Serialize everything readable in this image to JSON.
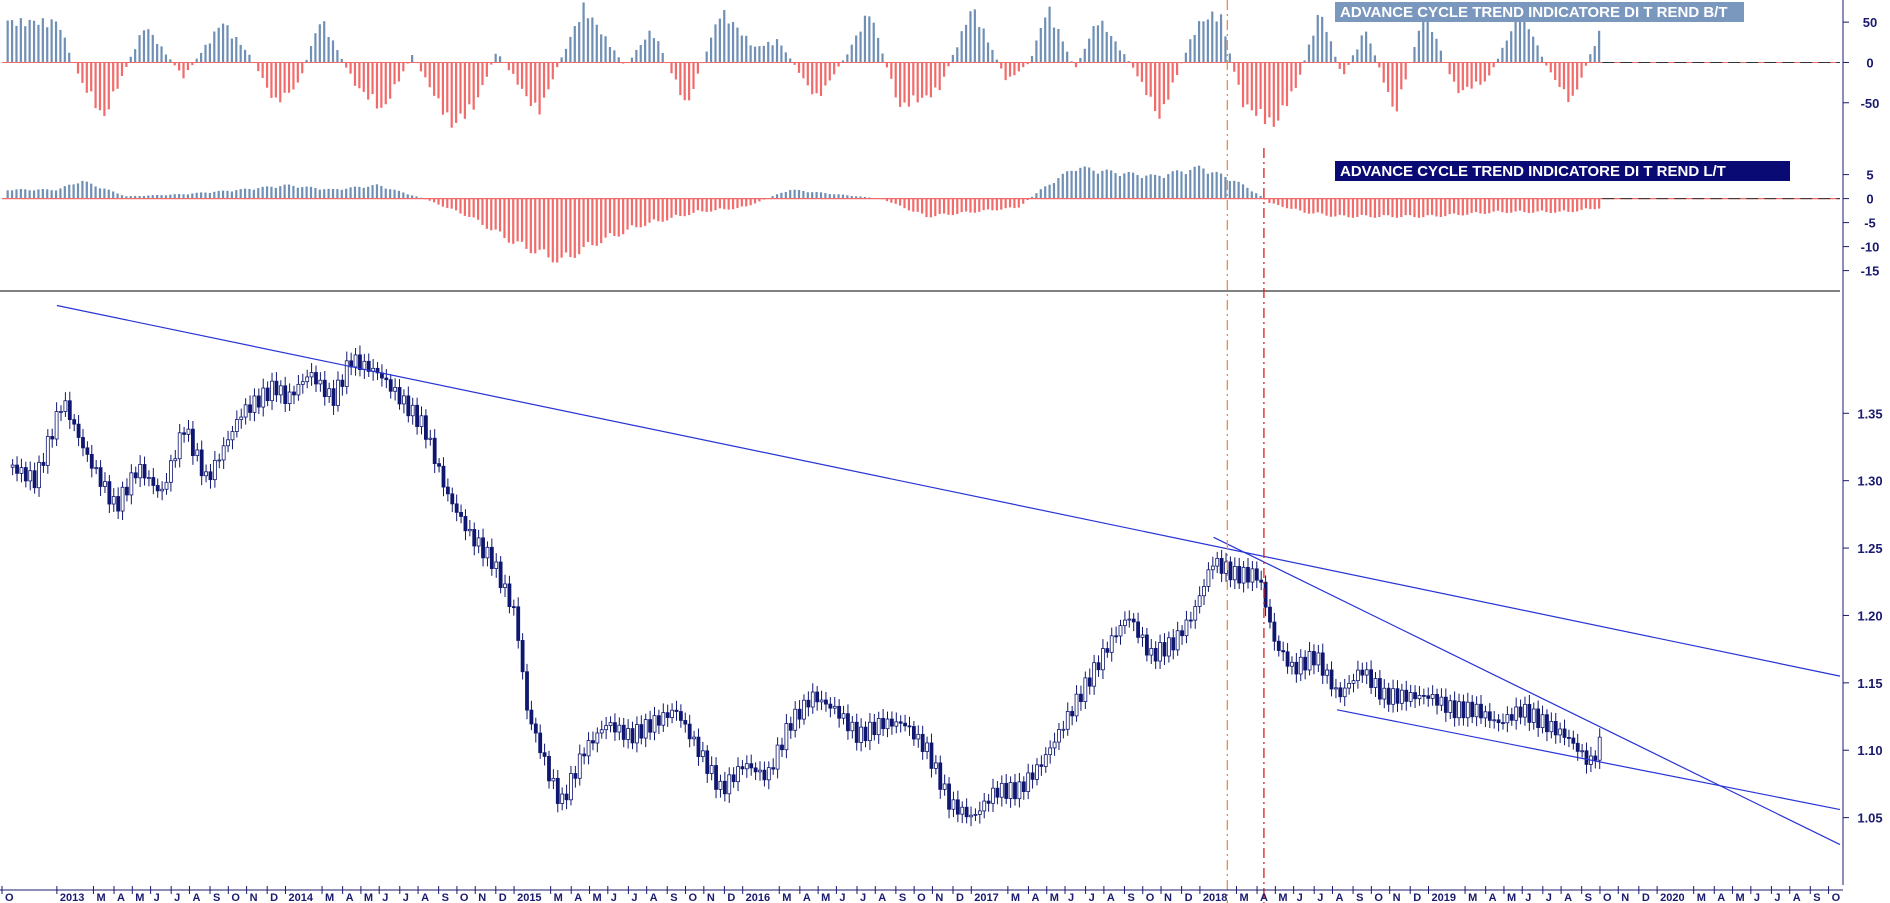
{
  "colors": {
    "positive_bar": "#6f8fb5",
    "negative_bar": "#f26b6b",
    "candle": "#0f1770",
    "trendline": "#2733d6",
    "axis_text": "#1a1a6e",
    "bt_title_bg": "#7a98bd",
    "lt_title_bg": "#0a0a74",
    "cycle_line_1": "#f08a48",
    "cycle_line_2": "#d62020"
  },
  "chart_data": [
    {
      "panel": "oscillator-bt",
      "type": "bar",
      "title": "ADVANCE CYCLE TREND INDICATORE DI T REND B/T",
      "y_ticks": [
        "50",
        "0",
        "-50"
      ],
      "ylim": [
        -90,
        75
      ],
      "grid": false,
      "series_envelope": [
        {
          "t": 2013.0,
          "v": 55
        },
        {
          "t": 2013.1,
          "v": -25
        },
        {
          "t": 2013.2,
          "v": -75
        },
        {
          "t": 2013.38,
          "v": 50
        },
        {
          "t": 2013.55,
          "v": -20
        },
        {
          "t": 2013.72,
          "v": 55
        },
        {
          "t": 2013.85,
          "v": 5
        },
        {
          "t": 2013.95,
          "v": -55
        },
        {
          "t": 2014.05,
          "v": -30
        },
        {
          "t": 2014.15,
          "v": 60
        },
        {
          "t": 2014.3,
          "v": -30
        },
        {
          "t": 2014.42,
          "v": -65
        },
        {
          "t": 2014.55,
          "v": 10
        },
        {
          "t": 2014.72,
          "v": -85
        },
        {
          "t": 2014.82,
          "v": -60
        },
        {
          "t": 2014.92,
          "v": 15
        },
        {
          "t": 2015.1,
          "v": -70
        },
        {
          "t": 2015.18,
          "v": -10
        },
        {
          "t": 2015.3,
          "v": 75
        },
        {
          "t": 2015.48,
          "v": -5
        },
        {
          "t": 2015.6,
          "v": 45
        },
        {
          "t": 2015.75,
          "v": -60
        },
        {
          "t": 2015.9,
          "v": 70
        },
        {
          "t": 2016.05,
          "v": 20
        },
        {
          "t": 2016.15,
          "v": 30
        },
        {
          "t": 2016.32,
          "v": -50
        },
        {
          "t": 2016.45,
          "v": 10
        },
        {
          "t": 2016.55,
          "v": 70
        },
        {
          "t": 2016.68,
          "v": -60
        },
        {
          "t": 2016.85,
          "v": -40
        },
        {
          "t": 2017.0,
          "v": 75
        },
        {
          "t": 2017.15,
          "v": -25
        },
        {
          "t": 2017.25,
          "v": 0
        },
        {
          "t": 2017.33,
          "v": 75
        },
        {
          "t": 2017.45,
          "v": -10
        },
        {
          "t": 2017.55,
          "v": 60
        },
        {
          "t": 2017.7,
          "v": -5
        },
        {
          "t": 2017.82,
          "v": -75
        },
        {
          "t": 2017.98,
          "v": 50
        },
        {
          "t": 2018.08,
          "v": 70
        },
        {
          "t": 2018.18,
          "v": -55
        },
        {
          "t": 2018.32,
          "v": -85
        },
        {
          "t": 2018.42,
          "v": -30
        },
        {
          "t": 2018.52,
          "v": 70
        },
        {
          "t": 2018.62,
          "v": -20
        },
        {
          "t": 2018.72,
          "v": 45
        },
        {
          "t": 2018.85,
          "v": -70
        },
        {
          "t": 2018.98,
          "v": 70
        },
        {
          "t": 2019.12,
          "v": -40
        },
        {
          "t": 2019.25,
          "v": -25
        },
        {
          "t": 2019.4,
          "v": 70
        },
        {
          "t": 2019.52,
          "v": -10
        },
        {
          "t": 2019.62,
          "v": -55
        },
        {
          "t": 2019.76,
          "v": 55
        }
      ]
    },
    {
      "panel": "oscillator-lt",
      "type": "bar",
      "title": "ADVANCE CYCLE TREND INDICATORE DI T REND L/T",
      "y_ticks": [
        "5",
        "0",
        "-5",
        "-10",
        "-15"
      ],
      "ylim": [
        -18,
        7
      ],
      "grid": false,
      "series_envelope": [
        {
          "t": 2013.0,
          "v": 2
        },
        {
          "t": 2013.1,
          "v": 4
        },
        {
          "t": 2013.3,
          "v": 0.5
        },
        {
          "t": 2013.55,
          "v": 1
        },
        {
          "t": 2013.8,
          "v": 2
        },
        {
          "t": 2014.0,
          "v": 3
        },
        {
          "t": 2014.2,
          "v": 2
        },
        {
          "t": 2014.4,
          "v": 3
        },
        {
          "t": 2014.6,
          "v": 0
        },
        {
          "t": 2014.8,
          "v": -4
        },
        {
          "t": 2015.0,
          "v": -10
        },
        {
          "t": 2015.2,
          "v": -14
        },
        {
          "t": 2015.35,
          "v": -10
        },
        {
          "t": 2015.55,
          "v": -6
        },
        {
          "t": 2015.8,
          "v": -3
        },
        {
          "t": 2016.0,
          "v": -2
        },
        {
          "t": 2016.2,
          "v": 2
        },
        {
          "t": 2016.4,
          "v": 1
        },
        {
          "t": 2016.6,
          "v": 0
        },
        {
          "t": 2016.8,
          "v": -4
        },
        {
          "t": 2017.0,
          "v": -3
        },
        {
          "t": 2017.2,
          "v": -2
        },
        {
          "t": 2017.3,
          "v": 2
        },
        {
          "t": 2017.45,
          "v": 7
        },
        {
          "t": 2017.6,
          "v": 6
        },
        {
          "t": 2017.8,
          "v": 5
        },
        {
          "t": 2018.0,
          "v": 7
        },
        {
          "t": 2018.15,
          "v": 4
        },
        {
          "t": 2018.25,
          "v": 1
        },
        {
          "t": 2018.3,
          "v": -1
        },
        {
          "t": 2018.45,
          "v": -3
        },
        {
          "t": 2018.6,
          "v": -4
        },
        {
          "t": 2018.8,
          "v": -4
        },
        {
          "t": 2019.0,
          "v": -4
        },
        {
          "t": 2019.3,
          "v": -3
        },
        {
          "t": 2019.6,
          "v": -3
        },
        {
          "t": 2019.76,
          "v": -2
        }
      ]
    },
    {
      "panel": "price",
      "type": "candlestick",
      "y_ticks": [
        "1.35",
        "1.30",
        "1.25",
        "1.20",
        "1.15",
        "1.10",
        "1.05"
      ],
      "ylim": [
        1.0,
        1.44
      ],
      "grid": false,
      "x_ticks": [
        "O",
        "2013",
        "M",
        "A",
        "M",
        "J",
        "J",
        "A",
        "S",
        "O",
        "N",
        "D",
        "2014",
        "M",
        "A",
        "M",
        "J",
        "J",
        "A",
        "S",
        "O",
        "N",
        "D",
        "2015",
        "M",
        "A",
        "M",
        "J",
        "J",
        "A",
        "S",
        "O",
        "N",
        "D",
        "2016",
        "M",
        "A",
        "M",
        "J",
        "J",
        "A",
        "S",
        "O",
        "N",
        "D",
        "2017",
        "M",
        "A",
        "M",
        "J",
        "J",
        "A",
        "S",
        "O",
        "N",
        "D",
        "2018",
        "M",
        "A",
        "M",
        "J",
        "J",
        "A",
        "S",
        "O",
        "N",
        "D",
        "2019",
        "M",
        "A",
        "M",
        "J",
        "J",
        "A",
        "S",
        "O",
        "N",
        "D",
        "2020",
        "M",
        "A",
        "M",
        "J",
        "J",
        "A",
        "S",
        "O"
      ],
      "x_tick_times": [
        2012.76,
        2013.0,
        2013.16,
        2013.25,
        2013.33,
        2013.41,
        2013.5,
        2013.58,
        2013.67,
        2013.75,
        2013.83,
        2013.92,
        2014.0,
        2014.16,
        2014.25,
        2014.33,
        2014.41,
        2014.5,
        2014.58,
        2014.67,
        2014.75,
        2014.83,
        2014.92,
        2015.0,
        2015.16,
        2015.25,
        2015.33,
        2015.41,
        2015.5,
        2015.58,
        2015.67,
        2015.75,
        2015.83,
        2015.92,
        2016.0,
        2016.16,
        2016.25,
        2016.33,
        2016.41,
        2016.5,
        2016.58,
        2016.67,
        2016.75,
        2016.83,
        2016.92,
        2017.0,
        2017.16,
        2017.25,
        2017.33,
        2017.41,
        2017.5,
        2017.58,
        2017.67,
        2017.75,
        2017.83,
        2017.92,
        2018.0,
        2018.16,
        2018.25,
        2018.33,
        2018.41,
        2018.5,
        2018.58,
        2018.67,
        2018.75,
        2018.83,
        2018.92,
        2019.0,
        2019.16,
        2019.25,
        2019.33,
        2019.41,
        2019.5,
        2019.58,
        2019.67,
        2019.75,
        2019.83,
        2019.92,
        2020.0,
        2020.16,
        2020.25,
        2020.33,
        2020.41,
        2020.5,
        2020.58,
        2020.67,
        2020.75
      ],
      "price_path": [
        {
          "t": 2012.8,
          "v": 1.31
        },
        {
          "t": 2012.9,
          "v": 1.3
        },
        {
          "t": 2013.02,
          "v": 1.36
        },
        {
          "t": 2013.12,
          "v": 1.32
        },
        {
          "t": 2013.25,
          "v": 1.28
        },
        {
          "t": 2013.35,
          "v": 1.31
        },
        {
          "t": 2013.45,
          "v": 1.29
        },
        {
          "t": 2013.55,
          "v": 1.34
        },
        {
          "t": 2013.65,
          "v": 1.3
        },
        {
          "t": 2013.8,
          "v": 1.35
        },
        {
          "t": 2013.95,
          "v": 1.37
        },
        {
          "t": 2014.0,
          "v": 1.36
        },
        {
          "t": 2014.1,
          "v": 1.38
        },
        {
          "t": 2014.2,
          "v": 1.36
        },
        {
          "t": 2014.28,
          "v": 1.39
        },
        {
          "t": 2014.4,
          "v": 1.38
        },
        {
          "t": 2014.5,
          "v": 1.36
        },
        {
          "t": 2014.6,
          "v": 1.34
        },
        {
          "t": 2014.7,
          "v": 1.29
        },
        {
          "t": 2014.8,
          "v": 1.26
        },
        {
          "t": 2014.9,
          "v": 1.24
        },
        {
          "t": 2015.0,
          "v": 1.2
        },
        {
          "t": 2015.05,
          "v": 1.13
        },
        {
          "t": 2015.15,
          "v": 1.08
        },
        {
          "t": 2015.2,
          "v": 1.06
        },
        {
          "t": 2015.3,
          "v": 1.1
        },
        {
          "t": 2015.4,
          "v": 1.12
        },
        {
          "t": 2015.5,
          "v": 1.11
        },
        {
          "t": 2015.6,
          "v": 1.12
        },
        {
          "t": 2015.7,
          "v": 1.13
        },
        {
          "t": 2015.8,
          "v": 1.1
        },
        {
          "t": 2015.9,
          "v": 1.07
        },
        {
          "t": 2016.0,
          "v": 1.09
        },
        {
          "t": 2016.1,
          "v": 1.08
        },
        {
          "t": 2016.2,
          "v": 1.12
        },
        {
          "t": 2016.3,
          "v": 1.14
        },
        {
          "t": 2016.4,
          "v": 1.13
        },
        {
          "t": 2016.5,
          "v": 1.11
        },
        {
          "t": 2016.6,
          "v": 1.12
        },
        {
          "t": 2016.7,
          "v": 1.12
        },
        {
          "t": 2016.8,
          "v": 1.1
        },
        {
          "t": 2016.9,
          "v": 1.06
        },
        {
          "t": 2017.0,
          "v": 1.05
        },
        {
          "t": 2017.1,
          "v": 1.07
        },
        {
          "t": 2017.2,
          "v": 1.07
        },
        {
          "t": 2017.3,
          "v": 1.09
        },
        {
          "t": 2017.4,
          "v": 1.12
        },
        {
          "t": 2017.5,
          "v": 1.15
        },
        {
          "t": 2017.6,
          "v": 1.18
        },
        {
          "t": 2017.68,
          "v": 1.2
        },
        {
          "t": 2017.78,
          "v": 1.17
        },
        {
          "t": 2017.88,
          "v": 1.18
        },
        {
          "t": 2017.96,
          "v": 1.2
        },
        {
          "t": 2018.05,
          "v": 1.24
        },
        {
          "t": 2018.15,
          "v": 1.23
        },
        {
          "t": 2018.25,
          "v": 1.23
        },
        {
          "t": 2018.32,
          "v": 1.18
        },
        {
          "t": 2018.4,
          "v": 1.16
        },
        {
          "t": 2018.5,
          "v": 1.17
        },
        {
          "t": 2018.6,
          "v": 1.14
        },
        {
          "t": 2018.7,
          "v": 1.16
        },
        {
          "t": 2018.8,
          "v": 1.14
        },
        {
          "t": 2018.9,
          "v": 1.14
        },
        {
          "t": 2019.0,
          "v": 1.14
        },
        {
          "t": 2019.1,
          "v": 1.13
        },
        {
          "t": 2019.2,
          "v": 1.13
        },
        {
          "t": 2019.3,
          "v": 1.12
        },
        {
          "t": 2019.4,
          "v": 1.13
        },
        {
          "t": 2019.5,
          "v": 1.12
        },
        {
          "t": 2019.6,
          "v": 1.11
        },
        {
          "t": 2019.7,
          "v": 1.09
        },
        {
          "t": 2019.76,
          "v": 1.11
        }
      ],
      "trendlines": [
        {
          "name": "long-term-resistance",
          "from": {
            "t": 2013.0,
            "v": 1.43
          },
          "to": {
            "t": 2020.8,
            "v": 1.155
          }
        },
        {
          "name": "short-term-resistance",
          "from": {
            "t": 2018.06,
            "v": 1.258
          },
          "to": {
            "t": 2020.8,
            "v": 1.03
          }
        },
        {
          "name": "channel-support",
          "from": {
            "t": 2018.6,
            "v": 1.13
          },
          "to": {
            "t": 2020.8,
            "v": 1.056
          }
        }
      ],
      "cycle_markers": [
        {
          "t": 2018.12,
          "style": "dash-dot"
        },
        {
          "t": 2018.28,
          "style": "dash-dot"
        }
      ]
    }
  ]
}
